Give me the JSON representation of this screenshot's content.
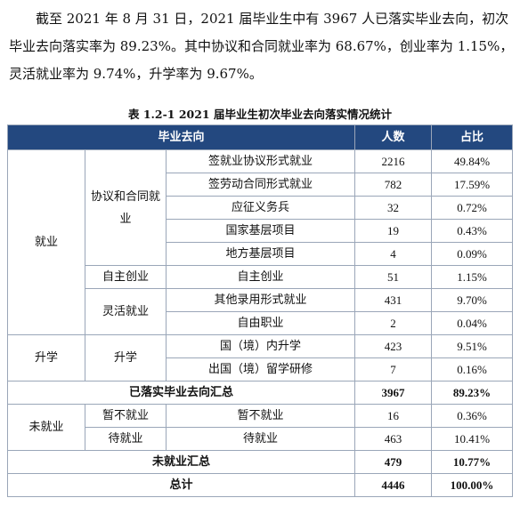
{
  "intro": {
    "lines": [
      "截至 2021 年 8 月 31 日，2021 届毕业生中有 3967 人已落实毕业去向，初次",
      "毕业去向落实率为 89.23%。其中协议和合同就业率为 68.67%，创业率为 1.15%，",
      "灵活就业率为 9.74%，升学率为 9.67%。"
    ]
  },
  "table": {
    "caption": "表 1.2-1    2021 届毕业生初次毕业去向落实情况统计",
    "headers": {
      "destination": "毕业去向",
      "count": "人数",
      "ratio": "占比"
    },
    "groups": {
      "employment": "就业",
      "contract": "协议和合同就业",
      "startup": "自主创业",
      "flexible": "灵活就业",
      "further_study": "升学",
      "further_study_sub": "升学",
      "unemployed": "未就业",
      "temp_unemployed": "暂不就业",
      "waiting": "待就业"
    },
    "rows": [
      {
        "label": "签就业协议形式就业",
        "count": "2216",
        "ratio": "49.84%"
      },
      {
        "label": "签劳动合同形式就业",
        "count": "782",
        "ratio": "17.59%"
      },
      {
        "label": "应征义务兵",
        "count": "32",
        "ratio": "0.72%"
      },
      {
        "label": "国家基层项目",
        "count": "19",
        "ratio": "0.43%"
      },
      {
        "label": "地方基层项目",
        "count": "4",
        "ratio": "0.09%"
      },
      {
        "label": "自主创业",
        "count": "51",
        "ratio": "1.15%"
      },
      {
        "label": "其他录用形式就业",
        "count": "431",
        "ratio": "9.70%"
      },
      {
        "label": "自由职业",
        "count": "2",
        "ratio": "0.04%"
      },
      {
        "label": "国（境）内升学",
        "count": "423",
        "ratio": "9.51%"
      },
      {
        "label": "出国（境）留学研修",
        "count": "7",
        "ratio": "0.16%"
      },
      {
        "label": "暂不就业",
        "count": "16",
        "ratio": "0.36%"
      },
      {
        "label": "待就业",
        "count": "463",
        "ratio": "10.41%"
      }
    ],
    "summaries": {
      "placed": {
        "label": "已落实毕业去向汇总",
        "count": "3967",
        "ratio": "89.23%"
      },
      "unplaced": {
        "label": "未就业汇总",
        "count": "479",
        "ratio": "10.77%"
      },
      "total": {
        "label": "总计",
        "count": "4446",
        "ratio": "100.00%"
      }
    }
  }
}
